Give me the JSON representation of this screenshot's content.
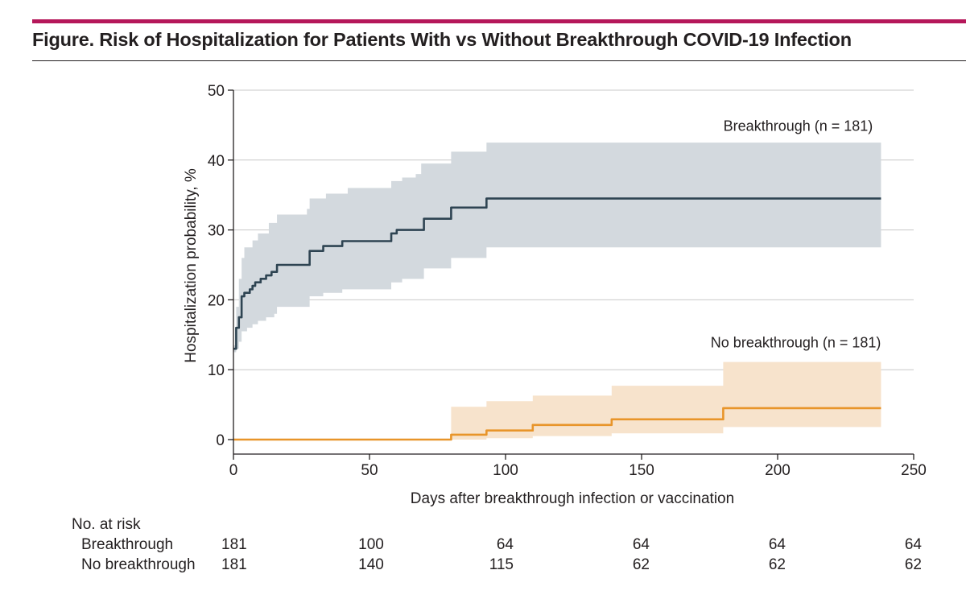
{
  "figure_title": "Figure. Risk of Hospitalization for Patients With vs Without Breakthrough COVID-19 Infection",
  "colors": {
    "accent_rule": "#b5175a",
    "breakthrough_line": "#2e4452",
    "breakthrough_band": "#d3d9de",
    "no_breakthrough_line": "#e8952a",
    "no_breakthrough_band": "#f7e3cc",
    "gridline": "#c8c8c8"
  },
  "chart_data": {
    "type": "line",
    "title": "",
    "xlabel": "Days after breakthrough infection or vaccination",
    "ylabel": "Hospitalization probability, %",
    "xlim": [
      0,
      250
    ],
    "ylim": [
      0,
      50
    ],
    "xticks": [
      0,
      50,
      100,
      150,
      200,
      250
    ],
    "yticks": [
      0,
      10,
      20,
      30,
      40,
      50
    ],
    "grid": "horizontal",
    "series": [
      {
        "name": "Breakthrough (n = 181)",
        "step": [
          [
            0,
            13
          ],
          [
            1,
            16
          ],
          [
            2,
            17.5
          ],
          [
            3,
            20.5
          ],
          [
            4,
            21
          ],
          [
            6,
            21.5
          ],
          [
            7,
            22
          ],
          [
            8,
            22.5
          ],
          [
            10,
            23
          ],
          [
            12,
            23.5
          ],
          [
            14,
            24
          ],
          [
            16,
            25
          ],
          [
            26,
            25
          ],
          [
            28,
            27
          ],
          [
            33,
            27.7
          ],
          [
            40,
            28.4
          ],
          [
            56,
            28.4
          ],
          [
            58,
            29.5
          ],
          [
            60,
            30
          ],
          [
            67,
            30
          ],
          [
            70,
            31.6
          ],
          [
            78,
            31.6
          ],
          [
            80,
            33.2
          ],
          [
            92,
            33.2
          ],
          [
            93,
            34.5
          ],
          [
            238,
            34.5
          ]
        ],
        "ci_upper": [
          [
            0,
            13.5
          ],
          [
            1,
            19
          ],
          [
            2,
            23
          ],
          [
            3,
            26
          ],
          [
            4,
            27.5
          ],
          [
            7,
            28.5
          ],
          [
            9,
            29.5
          ],
          [
            13,
            31
          ],
          [
            16,
            32.2
          ],
          [
            26,
            32.2
          ],
          [
            27,
            33
          ],
          [
            28,
            34.5
          ],
          [
            34,
            35.2
          ],
          [
            42,
            36
          ],
          [
            56,
            36
          ],
          [
            58,
            37
          ],
          [
            62,
            37.5
          ],
          [
            67,
            38
          ],
          [
            69,
            39.5
          ],
          [
            79,
            39.5
          ],
          [
            80,
            41.2
          ],
          [
            92,
            41.2
          ],
          [
            93,
            42.5
          ],
          [
            238,
            42.5
          ]
        ],
        "ci_lower": [
          [
            0,
            12.5
          ],
          [
            1,
            13
          ],
          [
            2,
            14
          ],
          [
            3,
            15.5
          ],
          [
            5,
            16
          ],
          [
            7,
            16.5
          ],
          [
            9,
            17
          ],
          [
            12,
            17.5
          ],
          [
            15,
            18
          ],
          [
            16,
            19
          ],
          [
            26,
            19
          ],
          [
            28,
            20.5
          ],
          [
            33,
            21
          ],
          [
            40,
            21.5
          ],
          [
            56,
            21.5
          ],
          [
            58,
            22.5
          ],
          [
            62,
            23
          ],
          [
            67,
            23
          ],
          [
            70,
            24.5
          ],
          [
            79,
            24.5
          ],
          [
            80,
            26
          ],
          [
            92,
            26
          ],
          [
            93,
            27.5
          ],
          [
            238,
            27.5
          ]
        ]
      },
      {
        "name": "No breakthrough (n = 181)",
        "step": [
          [
            0,
            0
          ],
          [
            80,
            0
          ],
          [
            80,
            0.7
          ],
          [
            92,
            0.7
          ],
          [
            93,
            1.3
          ],
          [
            107,
            1.3
          ],
          [
            110,
            2.1
          ],
          [
            138,
            2.1
          ],
          [
            139,
            2.9
          ],
          [
            180,
            2.9
          ],
          [
            180,
            4.5
          ],
          [
            238,
            4.5
          ]
        ],
        "ci_upper": [
          [
            80,
            4.7
          ],
          [
            93,
            5.5
          ],
          [
            108,
            5.5
          ],
          [
            110,
            6.3
          ],
          [
            139,
            6.3
          ],
          [
            139,
            7.7
          ],
          [
            180,
            7.7
          ],
          [
            180,
            11.1
          ],
          [
            238,
            11.1
          ]
        ],
        "ci_lower": [
          [
            80,
            0
          ],
          [
            93,
            0.2
          ],
          [
            108,
            0.2
          ],
          [
            110,
            0.5
          ],
          [
            139,
            0.5
          ],
          [
            139,
            0.9
          ],
          [
            180,
            0.9
          ],
          [
            180,
            1.8
          ],
          [
            238,
            1.8
          ]
        ]
      }
    ],
    "annotations": [
      {
        "text": "Breakthrough (n = 181)",
        "x": 235,
        "y": 45
      },
      {
        "text": "No breakthrough (n = 181)",
        "x": 238,
        "y": 14
      }
    ]
  },
  "risk_table": {
    "header": "No. at risk",
    "rows": [
      {
        "label": "Breakthrough",
        "values": [
          "181",
          "100",
          "64",
          "64",
          "64",
          "64"
        ]
      },
      {
        "label": "No breakthrough",
        "values": [
          "181",
          "140",
          "115",
          "62",
          "62",
          "62"
        ]
      }
    ]
  }
}
